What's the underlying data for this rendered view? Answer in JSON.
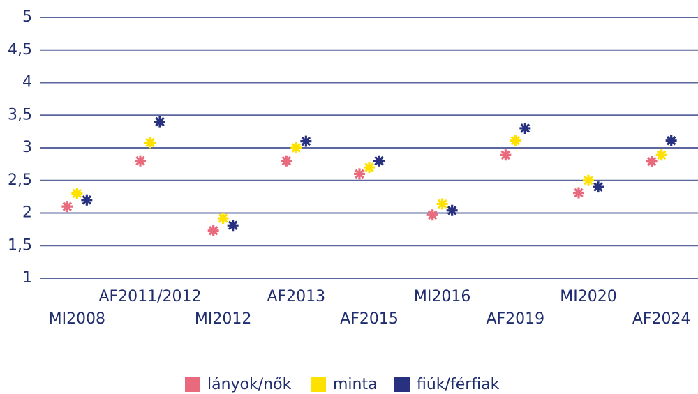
{
  "chart_data": {
    "type": "scatter",
    "categories": [
      "MI2008",
      "AF2011/2012",
      "MI2012",
      "AF2013",
      "AF2015",
      "MI2016",
      "AF2019",
      "MI2020",
      "AF2024"
    ],
    "series": [
      {
        "name": "lányok/nők",
        "color": "#ea6a7d",
        "values": [
          2.1,
          2.8,
          1.73,
          2.8,
          2.6,
          1.97,
          2.89,
          2.31,
          2.79
        ]
      },
      {
        "name": "minta",
        "color": "#ffe100",
        "values": [
          2.3,
          3.08,
          1.92,
          3.0,
          2.7,
          2.14,
          3.11,
          2.5,
          2.89
        ]
      },
      {
        "name": "fiúk/férfiak",
        "color": "#27317f",
        "values": [
          2.2,
          3.4,
          1.81,
          3.1,
          2.8,
          2.04,
          3.3,
          2.4,
          3.11
        ]
      }
    ],
    "ylim": [
      1,
      5
    ],
    "yticks": [
      1,
      {
        "value": 1.5,
        "label": "1,5"
      },
      2,
      {
        "value": 2.5,
        "label": "2,5"
      },
      3,
      {
        "value": 3.5,
        "label": "3,5"
      },
      4,
      {
        "value": 4.5,
        "label": "4,5"
      },
      5
    ],
    "grid": true,
    "legend": "bottom"
  }
}
